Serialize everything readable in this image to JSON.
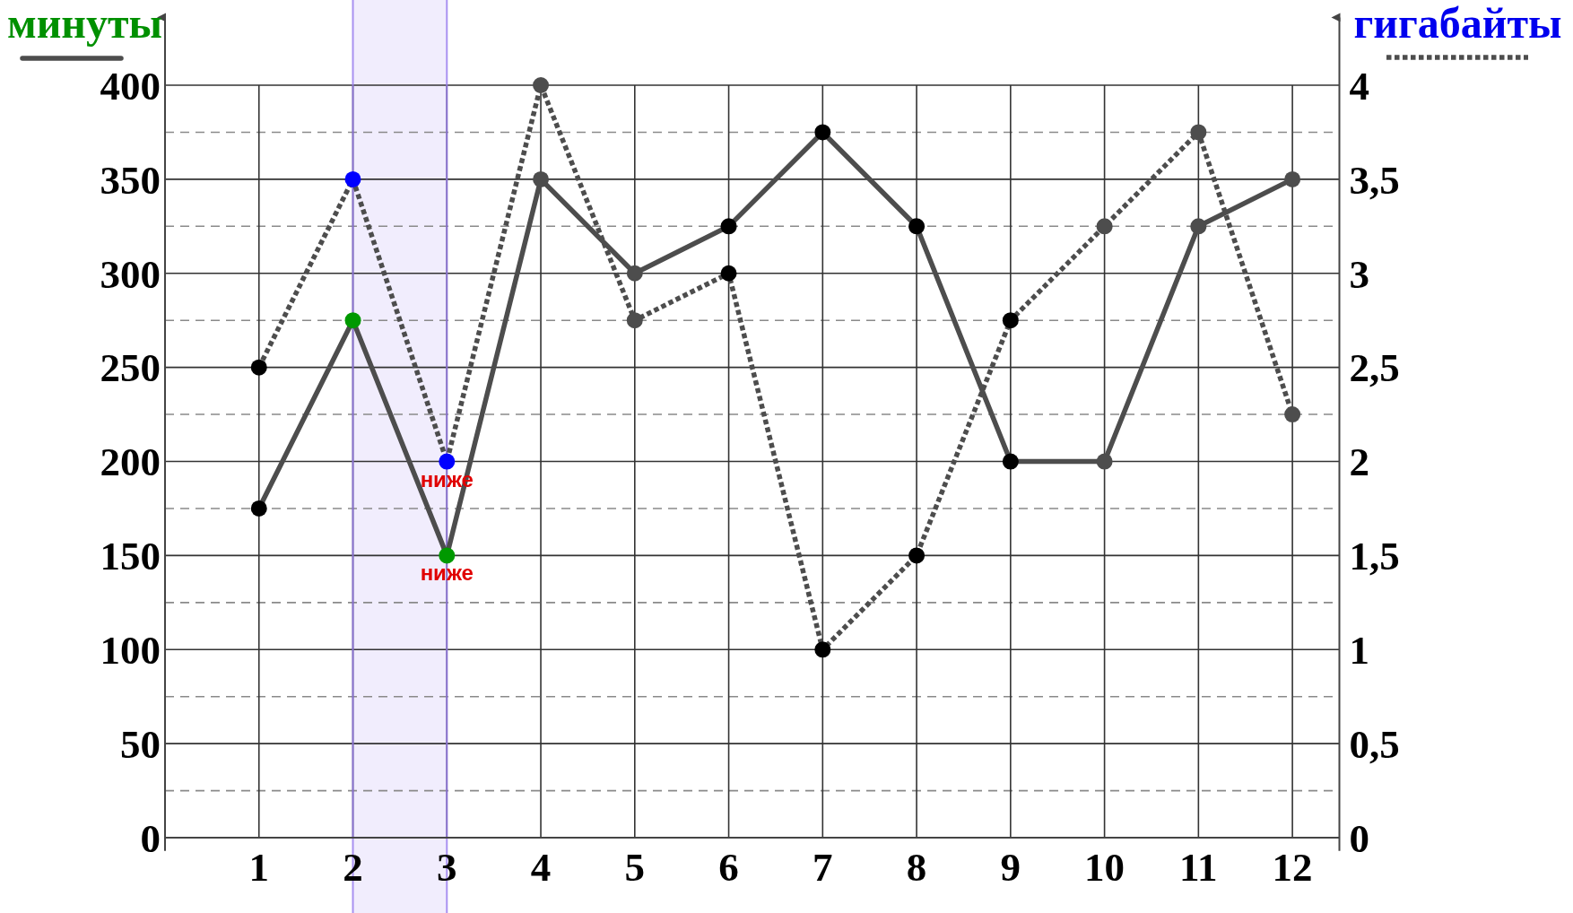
{
  "chart_data": {
    "type": "line",
    "ylabel": "минуты",
    "y2label": "гигабайты",
    "x": [
      1,
      2,
      3,
      4,
      5,
      6,
      7,
      8,
      9,
      10,
      11,
      12
    ],
    "xlim": [
      0,
      12.5
    ],
    "xticks": [
      1,
      2,
      3,
      4,
      5,
      6,
      7,
      8,
      9,
      10,
      11,
      12
    ],
    "ylim": [
      -7,
      437
    ],
    "yticks": [
      0,
      {
        "value": 25,
        "label": null
      },
      50,
      {
        "value": 75,
        "label": null
      },
      100,
      {
        "value": 125,
        "label": null
      },
      150,
      {
        "value": 175,
        "label": null
      },
      200,
      {
        "value": 225,
        "label": null
      },
      250,
      {
        "value": 275,
        "label": null
      },
      300,
      {
        "value": 325,
        "label": null
      },
      350,
      {
        "value": 375,
        "label": null
      },
      400
    ],
    "y2lim": [
      -0.07,
      4.37
    ],
    "y2ticks": [
      0,
      {
        "value": 0.5,
        "label": "0,5"
      },
      1,
      {
        "value": 1.5,
        "label": "1,5"
      },
      2,
      {
        "value": 2.5,
        "label": "2,5"
      },
      3,
      {
        "value": 3.5,
        "label": "3,5"
      },
      4
    ],
    "grid": true,
    "marker": "circle",
    "bands": [
      {
        "axis": "x",
        "from": 2,
        "to": 3,
        "color": "#9b7fef"
      }
    ],
    "annotations": [
      {
        "text": "ниже",
        "x": 3,
        "y": 200
      },
      {
        "text": "ниже",
        "x": 3,
        "y": 150
      }
    ],
    "series": [
      {
        "color": "#4d4d4d",
        "line_style": "solid",
        "values": [
          175,
          275,
          150,
          350,
          300,
          325,
          375,
          325,
          200,
          200,
          325,
          350
        ],
        "colors": [
          "#000000",
          "#009900",
          "#009900",
          "#4d4d4d",
          "#4d4d4d",
          "#000000",
          "#000000",
          "#000000",
          "#000000",
          "#4d4d4d",
          "#4d4d4d",
          "#4d4d4d"
        ]
      },
      {
        "color": "#4d4d4d",
        "line_style": "dotted",
        "axis": "y2",
        "values": [
          2.5,
          3.5,
          2,
          4,
          2.75,
          3,
          1,
          1.5,
          2.75,
          3.25,
          3.75,
          2.25
        ],
        "colors": [
          "#000000",
          "#0000ff",
          "#0000ff",
          "#4d4d4d",
          "#4d4d4d",
          "#000000",
          "#000000",
          "#000000",
          "#000000",
          "#4d4d4d",
          "#4d4d4d",
          "#4d4d4d"
        ]
      }
    ]
  }
}
